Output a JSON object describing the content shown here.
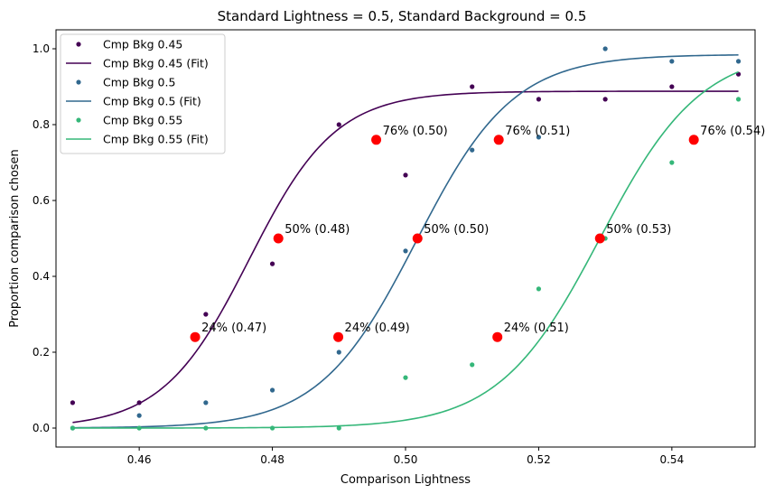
{
  "chart_data": {
    "type": "scatter",
    "title": "Standard Lightness = 0.5, Standard Background = 0.5",
    "xlabel": "Comparison Lightness",
    "ylabel": "Proportion comparison chosen",
    "xlim": [
      0.4475,
      0.5525
    ],
    "ylim": [
      -0.05,
      1.05
    ],
    "xticks": [
      0.46,
      0.48,
      0.5,
      0.52,
      0.54
    ],
    "xtick_labels": [
      "0.46",
      "0.48",
      "0.50",
      "0.52",
      "0.54"
    ],
    "yticks": [
      0.0,
      0.2,
      0.4,
      0.6,
      0.8,
      1.0
    ],
    "ytick_labels": [
      "0.0",
      "0.2",
      "0.4",
      "0.6",
      "0.8",
      "1.0"
    ],
    "grid": false,
    "legend_position": "top-left",
    "series": [
      {
        "name": "Cmp Bkg 0.45",
        "fit_name": "Cmp Bkg 0.45 (Fit)",
        "color": "#440154",
        "x": [
          0.45,
          0.46,
          0.47,
          0.48,
          0.49,
          0.5,
          0.51,
          0.52,
          0.53,
          0.54,
          0.55
        ],
        "y": [
          0.067,
          0.067,
          0.3,
          0.433,
          0.8,
          0.667,
          0.9,
          0.867,
          0.867,
          0.9,
          0.933
        ],
        "fit": {
          "lower": 0.0,
          "upper": 0.888,
          "mid": 0.4765,
          "scale": 0.0065
        },
        "thresholds": [
          {
            "x": 0.4684,
            "y": 0.24,
            "label": "24% (0.47)"
          },
          {
            "x": 0.4809,
            "y": 0.5,
            "label": "50% (0.48)"
          },
          {
            "x": 0.4956,
            "y": 0.76,
            "label": "76% (0.50)"
          }
        ]
      },
      {
        "name": "Cmp Bkg 0.5",
        "fit_name": "Cmp Bkg 0.5 (Fit)",
        "color": "#31688e",
        "x": [
          0.45,
          0.46,
          0.47,
          0.48,
          0.49,
          0.5,
          0.51,
          0.52,
          0.53,
          0.54,
          0.55
        ],
        "y": [
          0.0,
          0.033,
          0.067,
          0.1,
          0.2,
          0.467,
          0.733,
          0.767,
          1.0,
          0.967,
          0.967
        ],
        "fit": {
          "lower": 0.0,
          "upper": 0.985,
          "mid": 0.5016,
          "scale": 0.0073
        },
        "thresholds": [
          {
            "x": 0.4899,
            "y": 0.24,
            "label": "24% (0.49)"
          },
          {
            "x": 0.5018,
            "y": 0.5,
            "label": "50% (0.50)"
          },
          {
            "x": 0.514,
            "y": 0.76,
            "label": "76% (0.51)"
          }
        ]
      },
      {
        "name": "Cmp Bkg 0.55",
        "fit_name": "Cmp Bkg 0.55 (Fit)",
        "color": "#35b779",
        "x": [
          0.45,
          0.46,
          0.47,
          0.48,
          0.49,
          0.5,
          0.51,
          0.52,
          0.53,
          0.54,
          0.55
        ],
        "y": [
          0.0,
          0.0,
          0.0,
          0.0,
          0.0,
          0.133,
          0.167,
          0.367,
          0.5,
          0.7,
          0.867
        ],
        "fit": {
          "lower": 0.0,
          "upper": 1.0,
          "mid": 0.5292,
          "scale": 0.0076
        },
        "thresholds": [
          {
            "x": 0.5138,
            "y": 0.24,
            "label": "24% (0.51)"
          },
          {
            "x": 0.5292,
            "y": 0.5,
            "label": "50% (0.53)"
          },
          {
            "x": 0.5433,
            "y": 0.76,
            "label": "76% (0.54)"
          }
        ]
      }
    ],
    "threshold_color": "#ff0000"
  }
}
